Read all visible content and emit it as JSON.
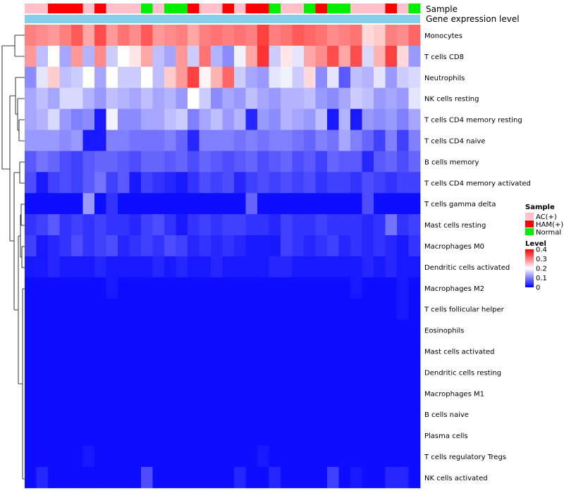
{
  "chart_data": {
    "type": "heatmap",
    "title": "",
    "annotation_labels": {
      "sample": "Sample",
      "expression": "Gene expression level"
    },
    "sample_legend": {
      "title": "Sample",
      "entries": [
        {
          "label": "AC(+)",
          "color": "#FFC0CB"
        },
        {
          "label": "HAM(+)",
          "color": "#FF0000"
        },
        {
          "label": "Normal",
          "color": "#00EE00"
        }
      ]
    },
    "level_legend": {
      "title": "Level",
      "ticks": [
        "0.4",
        "0.3",
        "0.2",
        "0.1",
        "0"
      ],
      "tick_values": [
        0.4,
        0.3,
        0.2,
        0.1,
        0
      ],
      "colors": {
        "low": "#0000FF",
        "mid": "#FFFFFF",
        "high": "#FF0000"
      },
      "range": [
        0,
        0.4
      ]
    },
    "expression_bar_color": "#87CEEB",
    "column_groups": [
      "AC(+)",
      "AC(+)",
      "HAM(+)",
      "HAM(+)",
      "HAM(+)",
      "AC(+)",
      "HAM(+)",
      "AC(+)",
      "AC(+)",
      "AC(+)",
      "Normal",
      "AC(+)",
      "Normal",
      "Normal",
      "HAM(+)",
      "AC(+)",
      "AC(+)",
      "HAM(+)",
      "AC(+)",
      "HAM(+)",
      "HAM(+)",
      "Normal",
      "AC(+)",
      "AC(+)",
      "Normal",
      "HAM(+)",
      "Normal",
      "Normal",
      "AC(+)",
      "AC(+)",
      "AC(+)",
      "HAM(+)",
      "AC(+)",
      "Normal"
    ],
    "rows": [
      "Monocytes",
      "T cells CD8",
      "Neutrophils",
      "NK cells resting",
      "T cells CD4 memory resting",
      "T cells CD4 naive",
      "B cells memory",
      "T cells CD4 memory activated",
      "T cells gamma delta",
      "Mast cells resting",
      "Macrophages M0",
      "Dendritic cells activated",
      "Macrophages M2",
      "T cells follicular helper",
      "Eosinophils",
      "Mast cells activated",
      "Dendritic cells resting",
      "Macrophages M1",
      "B cells naive",
      "Plasma cells",
      "T cells regulatory  Tregs",
      "NK cells activated"
    ],
    "values": [
      [
        0.3,
        0.29,
        0.28,
        0.3,
        0.33,
        0.27,
        0.34,
        0.28,
        0.31,
        0.29,
        0.33,
        0.28,
        0.29,
        0.3,
        0.27,
        0.3,
        0.31,
        0.3,
        0.31,
        0.3,
        0.35,
        0.3,
        0.31,
        0.33,
        0.32,
        0.31,
        0.29,
        0.3,
        0.31,
        0.23,
        0.24,
        0.3,
        0.29,
        0.32
      ],
      [
        0.28,
        0.15,
        0.2,
        0.13,
        0.28,
        0.14,
        0.29,
        0.16,
        0.2,
        0.22,
        0.27,
        0.15,
        0.13,
        0.28,
        0.16,
        0.31,
        0.14,
        0.11,
        0.19,
        0.27,
        0.36,
        0.16,
        0.22,
        0.18,
        0.27,
        0.29,
        0.34,
        0.27,
        0.34,
        0.17,
        0.26,
        0.35,
        0.23,
        0.12
      ],
      [
        0.11,
        0.18,
        0.24,
        0.15,
        0.16,
        0.2,
        0.13,
        0.2,
        0.16,
        0.16,
        0.2,
        0.15,
        0.24,
        0.28,
        0.35,
        0.21,
        0.26,
        0.32,
        0.16,
        0.13,
        0.12,
        0.18,
        0.19,
        0.16,
        0.23,
        0.11,
        0.18,
        0.07,
        0.15,
        0.14,
        0.18,
        0.12,
        0.16,
        0.17
      ],
      [
        0.13,
        0.15,
        0.13,
        0.17,
        0.17,
        0.14,
        0.12,
        0.15,
        0.14,
        0.13,
        0.15,
        0.13,
        0.14,
        0.12,
        0.2,
        0.16,
        0.11,
        0.13,
        0.12,
        0.15,
        0.13,
        0.12,
        0.14,
        0.14,
        0.15,
        0.12,
        0.11,
        0.13,
        0.16,
        0.15,
        0.12,
        0.13,
        0.12,
        0.18
      ],
      [
        0.13,
        0.14,
        0.17,
        0.12,
        0.1,
        0.11,
        0.02,
        0.19,
        0.11,
        0.11,
        0.13,
        0.13,
        0.15,
        0.16,
        0.1,
        0.13,
        0.15,
        0.12,
        0.14,
        0.03,
        0.12,
        0.11,
        0.14,
        0.13,
        0.12,
        0.15,
        0.02,
        0.14,
        0.02,
        0.12,
        0.11,
        0.12,
        0.1,
        0.13
      ],
      [
        0.12,
        0.12,
        0.12,
        0.11,
        0.12,
        0.02,
        0.02,
        0.1,
        0.1,
        0.09,
        0.09,
        0.09,
        0.1,
        0.08,
        0.03,
        0.1,
        0.1,
        0.1,
        0.09,
        0.1,
        0.09,
        0.1,
        0.1,
        0.09,
        0.08,
        0.1,
        0.09,
        0.13,
        0.1,
        0.08,
        0.05,
        0.1,
        0.05,
        0.1
      ],
      [
        0.07,
        0.09,
        0.08,
        0.06,
        0.05,
        0.07,
        0.08,
        0.08,
        0.07,
        0.06,
        0.08,
        0.08,
        0.07,
        0.08,
        0.06,
        0.08,
        0.07,
        0.06,
        0.07,
        0.08,
        0.06,
        0.07,
        0.08,
        0.06,
        0.07,
        0.05,
        0.08,
        0.07,
        0.07,
        0.03,
        0.07,
        0.08,
        0.06,
        0.08
      ],
      [
        0.06,
        0.02,
        0.05,
        0.06,
        0.05,
        0.07,
        0.09,
        0.05,
        0.07,
        0.02,
        0.05,
        0.04,
        0.03,
        0.02,
        0.04,
        0.06,
        0.05,
        0.06,
        0.03,
        0.05,
        0.06,
        0.05,
        0.06,
        0.05,
        0.06,
        0.04,
        0.05,
        0.05,
        0.04,
        0.06,
        0.05,
        0.04,
        0.05,
        0.05
      ],
      [
        0.01,
        0.01,
        0.01,
        0.01,
        0.01,
        0.12,
        0.01,
        0.04,
        0.01,
        0.01,
        0.01,
        0.01,
        0.01,
        0.01,
        0.01,
        0.01,
        0.01,
        0.01,
        0.01,
        0.08,
        0.01,
        0.01,
        0.01,
        0.01,
        0.01,
        0.01,
        0.01,
        0.01,
        0.01,
        0.06,
        0.01,
        0.01,
        0.01,
        0.01
      ],
      [
        0.04,
        0.05,
        0.07,
        0.04,
        0.05,
        0.04,
        0.05,
        0.04,
        0.04,
        0.03,
        0.05,
        0.06,
        0.04,
        0.02,
        0.04,
        0.05,
        0.04,
        0.05,
        0.05,
        0.04,
        0.04,
        0.03,
        0.05,
        0.04,
        0.04,
        0.05,
        0.04,
        0.04,
        0.04,
        0.03,
        0.04,
        0.09,
        0.04,
        0.05
      ],
      [
        0.05,
        0.02,
        0.03,
        0.04,
        0.06,
        0.04,
        0.05,
        0.06,
        0.03,
        0.04,
        0.05,
        0.04,
        0.06,
        0.05,
        0.03,
        0.04,
        0.03,
        0.04,
        0.03,
        0.02,
        0.02,
        0.02,
        0.05,
        0.04,
        0.03,
        0.04,
        0.05,
        0.03,
        0.04,
        0.03,
        0.04,
        0.03,
        0.02,
        0.04
      ],
      [
        0.02,
        0.02,
        0.03,
        0.02,
        0.02,
        0.02,
        0.03,
        0.02,
        0.02,
        0.02,
        0.02,
        0.03,
        0.02,
        0.03,
        0.02,
        0.02,
        0.03,
        0.02,
        0.02,
        0.02,
        0.02,
        0.03,
        0.03,
        0.02,
        0.02,
        0.02,
        0.02,
        0.02,
        0.02,
        0.03,
        0.02,
        0.03,
        0.02,
        0.02
      ],
      [
        0.01,
        0.01,
        0.01,
        0.01,
        0.01,
        0.01,
        0.01,
        0.02,
        0.01,
        0.01,
        0.01,
        0.01,
        0.01,
        0.01,
        0.01,
        0.01,
        0.01,
        0.01,
        0.01,
        0.01,
        0.01,
        0.01,
        0.01,
        0.01,
        0.01,
        0.01,
        0.01,
        0.01,
        0.02,
        0.01,
        0.01,
        0.01,
        0.02,
        0.01
      ],
      [
        0.01,
        0.01,
        0.01,
        0.01,
        0.01,
        0.01,
        0.01,
        0.01,
        0.01,
        0.01,
        0.01,
        0.01,
        0.01,
        0.01,
        0.01,
        0.01,
        0.01,
        0.01,
        0.01,
        0.01,
        0.01,
        0.01,
        0.01,
        0.01,
        0.01,
        0.01,
        0.01,
        0.01,
        0.01,
        0.01,
        0.01,
        0.01,
        0.02,
        0.01
      ],
      [
        0.01,
        0.01,
        0.01,
        0.01,
        0.01,
        0.01,
        0.01,
        0.01,
        0.01,
        0.01,
        0.01,
        0.01,
        0.01,
        0.01,
        0.01,
        0.01,
        0.01,
        0.01,
        0.01,
        0.01,
        0.01,
        0.01,
        0.01,
        0.01,
        0.01,
        0.01,
        0.01,
        0.01,
        0.01,
        0.01,
        0.01,
        0.01,
        0.01,
        0.01
      ],
      [
        0.01,
        0.01,
        0.01,
        0.01,
        0.01,
        0.01,
        0.01,
        0.01,
        0.01,
        0.01,
        0.01,
        0.01,
        0.01,
        0.01,
        0.01,
        0.01,
        0.01,
        0.01,
        0.01,
        0.01,
        0.01,
        0.01,
        0.01,
        0.01,
        0.01,
        0.01,
        0.01,
        0.01,
        0.01,
        0.01,
        0.01,
        0.01,
        0.01,
        0.01
      ],
      [
        0.01,
        0.01,
        0.01,
        0.01,
        0.01,
        0.01,
        0.01,
        0.01,
        0.01,
        0.01,
        0.01,
        0.01,
        0.01,
        0.01,
        0.01,
        0.01,
        0.01,
        0.01,
        0.01,
        0.01,
        0.01,
        0.01,
        0.01,
        0.01,
        0.01,
        0.01,
        0.01,
        0.01,
        0.01,
        0.01,
        0.01,
        0.01,
        0.01,
        0.01
      ],
      [
        0.01,
        0.01,
        0.01,
        0.01,
        0.01,
        0.01,
        0.01,
        0.01,
        0.01,
        0.01,
        0.01,
        0.01,
        0.01,
        0.01,
        0.01,
        0.01,
        0.01,
        0.01,
        0.01,
        0.01,
        0.01,
        0.01,
        0.01,
        0.01,
        0.01,
        0.01,
        0.01,
        0.01,
        0.01,
        0.01,
        0.01,
        0.01,
        0.01,
        0.01
      ],
      [
        0.01,
        0.01,
        0.01,
        0.01,
        0.01,
        0.01,
        0.01,
        0.01,
        0.01,
        0.01,
        0.01,
        0.01,
        0.01,
        0.01,
        0.01,
        0.01,
        0.01,
        0.01,
        0.01,
        0.01,
        0.01,
        0.01,
        0.01,
        0.01,
        0.01,
        0.01,
        0.01,
        0.01,
        0.01,
        0.01,
        0.01,
        0.01,
        0.01,
        0.01
      ],
      [
        0.01,
        0.01,
        0.01,
        0.01,
        0.01,
        0.01,
        0.01,
        0.01,
        0.01,
        0.01,
        0.01,
        0.01,
        0.01,
        0.01,
        0.01,
        0.01,
        0.01,
        0.01,
        0.01,
        0.01,
        0.01,
        0.01,
        0.01,
        0.01,
        0.01,
        0.01,
        0.01,
        0.01,
        0.01,
        0.01,
        0.01,
        0.01,
        0.01,
        0.01
      ],
      [
        0.01,
        0.01,
        0.01,
        0.01,
        0.01,
        0.02,
        0.01,
        0.01,
        0.01,
        0.01,
        0.01,
        0.01,
        0.01,
        0.01,
        0.01,
        0.01,
        0.01,
        0.01,
        0.01,
        0.01,
        0.02,
        0.01,
        0.01,
        0.01,
        0.01,
        0.01,
        0.01,
        0.01,
        0.01,
        0.01,
        0.01,
        0.01,
        0.01,
        0.01
      ],
      [
        0.01,
        0.03,
        0.01,
        0.01,
        0.01,
        0.01,
        0.01,
        0.01,
        0.01,
        0.01,
        0.06,
        0.01,
        0.01,
        0.01,
        0.01,
        0.01,
        0.01,
        0.01,
        0.03,
        0.01,
        0.01,
        0.03,
        0.01,
        0.01,
        0.01,
        0.01,
        0.05,
        0.01,
        0.02,
        0.01,
        0.01,
        0.03,
        0.03,
        0.01
      ]
    ]
  }
}
